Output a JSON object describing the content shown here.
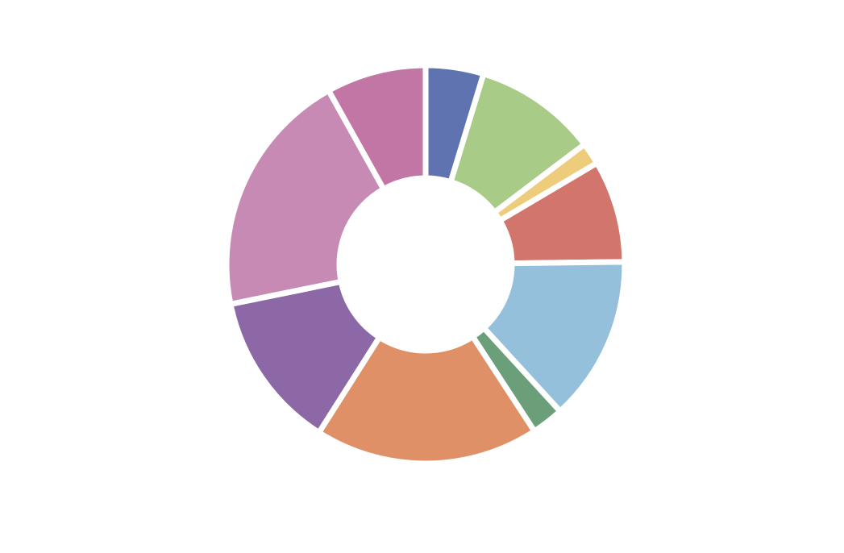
{
  "chart_data": {
    "type": "pie",
    "variant": "donut",
    "title": "",
    "legend": "none",
    "slices": [
      {
        "value": 4.7,
        "color": "#5f73b1"
      },
      {
        "value": 10.0,
        "color": "#a8cb88"
      },
      {
        "value": 1.8,
        "color": "#edcc7c"
      },
      {
        "value": 8.3,
        "color": "#d2756c"
      },
      {
        "value": 13.4,
        "color": "#95c0db"
      },
      {
        "value": 2.6,
        "color": "#6b9f79"
      },
      {
        "value": 18.2,
        "color": "#e09067"
      },
      {
        "value": 12.8,
        "color": "#8c68a6"
      },
      {
        "value": 20.1,
        "color": "#c78ab5"
      },
      {
        "value": 8.1,
        "color": "#c276a5"
      }
    ]
  }
}
